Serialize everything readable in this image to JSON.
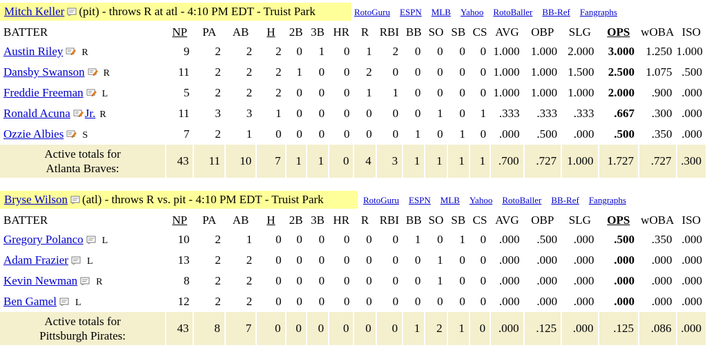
{
  "links": [
    "RotoGuru",
    "ESPN",
    "MLB",
    "Yahoo",
    "RotoBaller",
    "BB-Ref",
    "Fangraphs"
  ],
  "columns": [
    "BATTER",
    "NP",
    "PA",
    "AB",
    "H",
    "2B",
    "3B",
    "HR",
    "R",
    "RBI",
    "BB",
    "SO",
    "SB",
    "CS",
    "AVG",
    "OBP",
    "SLG",
    "OPS",
    "wOBA",
    "ISO"
  ],
  "sections": [
    {
      "pitcher": "Mitch Keller",
      "pitcher_info": "(pit) - throws R at atl - 4:10 PM EDT - Truist Park",
      "rows": [
        {
          "name": "Austin Riley",
          "hand": "R",
          "stats": [
            "9",
            "2",
            "2",
            "2",
            "0",
            "1",
            "0",
            "1",
            "2",
            "0",
            "0",
            "0",
            "0",
            "1.000",
            "1.000",
            "2.000",
            "3.000",
            "1.250",
            "1.000"
          ]
        },
        {
          "name": "Dansby Swanson",
          "hand": "R",
          "stats": [
            "11",
            "2",
            "2",
            "2",
            "1",
            "0",
            "0",
            "2",
            "0",
            "0",
            "0",
            "0",
            "0",
            "1.000",
            "1.000",
            "1.500",
            "2.500",
            "1.075",
            ".500"
          ]
        },
        {
          "name": "Freddie Freeman",
          "hand": "L",
          "stats": [
            "5",
            "2",
            "2",
            "2",
            "0",
            "0",
            "0",
            "1",
            "1",
            "0",
            "0",
            "0",
            "0",
            "1.000",
            "1.000",
            "1.000",
            "2.000",
            ".900",
            ".000"
          ]
        },
        {
          "name": "Ronald Acuna",
          "suffix": "Jr.",
          "hand": "R",
          "stats": [
            "11",
            "3",
            "3",
            "1",
            "0",
            "0",
            "0",
            "0",
            "0",
            "0",
            "1",
            "0",
            "1",
            ".333",
            ".333",
            ".333",
            ".667",
            ".300",
            ".000"
          ]
        },
        {
          "name": "Ozzie Albies",
          "hand": "S",
          "stats": [
            "7",
            "2",
            "1",
            "0",
            "0",
            "0",
            "0",
            "0",
            "0",
            "1",
            "0",
            "1",
            "0",
            ".000",
            ".500",
            ".000",
            ".500",
            ".350",
            ".000"
          ]
        }
      ],
      "totals_label": [
        "Active totals for",
        "Atlanta Braves:"
      ],
      "totals": [
        "43",
        "11",
        "10",
        "7",
        "1",
        "1",
        "0",
        "4",
        "3",
        "1",
        "1",
        "1",
        "1",
        ".700",
        ".727",
        "1.000",
        "1.727",
        ".727",
        ".300"
      ]
    },
    {
      "pitcher": "Bryse Wilson",
      "pitcher_info": "(atl) - throws R vs. pit - 4:10 PM EDT - Truist Park",
      "rows": [
        {
          "name": "Gregory Polanco",
          "hand": "L",
          "stats": [
            "10",
            "2",
            "1",
            "0",
            "0",
            "0",
            "0",
            "0",
            "0",
            "1",
            "0",
            "1",
            "0",
            ".000",
            ".500",
            ".000",
            ".500",
            ".350",
            ".000"
          ]
        },
        {
          "name": "Adam Frazier",
          "hand": "L",
          "stats": [
            "13",
            "2",
            "2",
            "0",
            "0",
            "0",
            "0",
            "0",
            "0",
            "0",
            "1",
            "0",
            "0",
            ".000",
            ".000",
            ".000",
            ".000",
            ".000",
            ".000"
          ]
        },
        {
          "name": "Kevin Newman",
          "hand": "R",
          "stats": [
            "8",
            "2",
            "2",
            "0",
            "0",
            "0",
            "0",
            "0",
            "0",
            "0",
            "1",
            "0",
            "0",
            ".000",
            ".000",
            ".000",
            ".000",
            ".000",
            ".000"
          ]
        },
        {
          "name": "Ben Gamel",
          "hand": "L",
          "stats": [
            "12",
            "2",
            "2",
            "0",
            "0",
            "0",
            "0",
            "0",
            "0",
            "0",
            "0",
            "0",
            "0",
            ".000",
            ".000",
            ".000",
            ".000",
            ".000",
            ".000"
          ]
        }
      ],
      "totals_label": [
        "Active totals for",
        "Pittsburgh Pirates:"
      ],
      "totals": [
        "43",
        "8",
        "7",
        "0",
        "0",
        "0",
        "0",
        "0",
        "0",
        "1",
        "2",
        "1",
        "0",
        ".000",
        ".125",
        ".000",
        ".125",
        ".086",
        ".000"
      ]
    }
  ]
}
